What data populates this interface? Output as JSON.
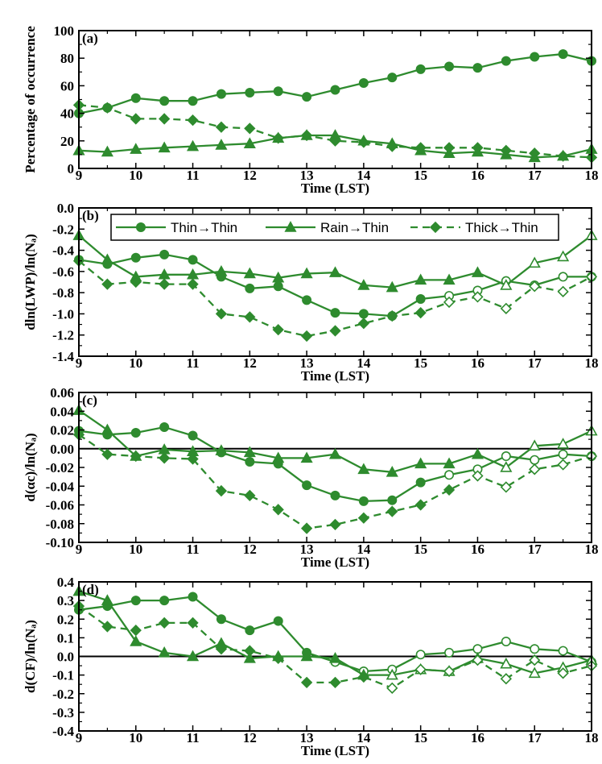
{
  "colors": {
    "series": "#2e8b2e",
    "axis": "#000000",
    "zero_line": "#000000"
  },
  "legend": {
    "placement": "top-center of panel (b)",
    "entries": [
      {
        "label": "Thin→Thin",
        "marker": "circle",
        "line": "solid"
      },
      {
        "label": "Rain→Thin",
        "marker": "triangle",
        "line": "solid"
      },
      {
        "label": "Thick→Thin",
        "marker": "diamond",
        "line": "dashed"
      }
    ]
  },
  "chart_data": [
    {
      "type": "line",
      "label": "(a)",
      "xlabel": "Time (LST)",
      "ylabel": "Percentage of occurrence",
      "xlim": [
        9,
        18
      ],
      "ylim": [
        0,
        100
      ],
      "xticks": [
        9,
        10,
        11,
        12,
        13,
        14,
        15,
        16,
        17,
        18
      ],
      "yticks": [
        0,
        20,
        40,
        60,
        80,
        100
      ],
      "ytick_labels": [
        "0",
        "20",
        "40",
        "60",
        "80",
        "100"
      ],
      "zero_line": false,
      "x": [
        9,
        9.5,
        10,
        10.5,
        11,
        11.5,
        12,
        12.5,
        13,
        13.5,
        14,
        14.5,
        15,
        15.5,
        16,
        16.5,
        17,
        17.5,
        18
      ],
      "series": [
        {
          "marker": "circle",
          "dashed": false,
          "open_from": null,
          "values": [
            40,
            44,
            51,
            49,
            49,
            54,
            55,
            56,
            52,
            57,
            62,
            66,
            72,
            74,
            73,
            78,
            81,
            83,
            78
          ]
        },
        {
          "marker": "triangle",
          "dashed": false,
          "open_from": null,
          "values": [
            13,
            12,
            14,
            15,
            16,
            17,
            18,
            22,
            24,
            24,
            20,
            18,
            13,
            11,
            12,
            10,
            8,
            9,
            14
          ]
        },
        {
          "marker": "diamond",
          "dashed": true,
          "open_from": null,
          "values": [
            46,
            44,
            36,
            36,
            35,
            30,
            29,
            22,
            24,
            20,
            19,
            16,
            15,
            15,
            15,
            13,
            11,
            9,
            8
          ]
        }
      ]
    },
    {
      "type": "line",
      "label": "(b)",
      "xlabel": "Time (LST)",
      "ylabel": "dln(LWP)/ln(Nₐ)",
      "xlim": [
        9,
        18
      ],
      "ylim": [
        -1.4,
        0
      ],
      "xticks": [
        9,
        10,
        11,
        12,
        13,
        14,
        15,
        16,
        17,
        18
      ],
      "yticks": [
        -1.4,
        -1.2,
        -1.0,
        -0.8,
        -0.6,
        -0.4,
        -0.2,
        0.0
      ],
      "ytick_labels": [
        "-1.4",
        "-1.2",
        "-1.0",
        "-0.8",
        "-0.6",
        "-0.4",
        "-0.2",
        "0.0"
      ],
      "zero_line": false,
      "x": [
        9,
        9.5,
        10,
        10.5,
        11,
        11.5,
        12,
        12.5,
        13,
        13.5,
        14,
        14.5,
        15,
        15.5,
        16,
        16.5,
        17,
        17.5,
        18
      ],
      "series": [
        {
          "marker": "circle",
          "dashed": false,
          "open_from": 15.5,
          "values": [
            -0.49,
            -0.53,
            -0.47,
            -0.44,
            -0.49,
            -0.65,
            -0.76,
            -0.74,
            -0.87,
            -0.99,
            -1.0,
            -1.02,
            -0.86,
            -0.83,
            -0.78,
            -0.69,
            -0.73,
            -0.65,
            -0.65
          ]
        },
        {
          "marker": "triangle",
          "dashed": false,
          "open_from": 16.5,
          "values": [
            -0.26,
            -0.49,
            -0.65,
            -0.63,
            -0.63,
            -0.6,
            -0.62,
            -0.66,
            -0.62,
            -0.61,
            -0.73,
            -0.75,
            -0.68,
            -0.68,
            -0.61,
            -0.73,
            -0.52,
            -0.46,
            -0.26
          ]
        },
        {
          "marker": "diamond",
          "dashed": true,
          "open_from": 15.5,
          "values": [
            -0.5,
            -0.72,
            -0.7,
            -0.72,
            -0.72,
            -1.0,
            -1.03,
            -1.15,
            -1.21,
            -1.16,
            -1.09,
            -1.02,
            -0.99,
            -0.89,
            -0.84,
            -0.95,
            -0.74,
            -0.79,
            -0.65
          ]
        }
      ]
    },
    {
      "type": "line",
      "label": "(c)",
      "xlabel": "Time (LST)",
      "ylabel": "d(αc)/ln(Nₐ)",
      "xlim": [
        9,
        18
      ],
      "ylim": [
        -0.1,
        0.06
      ],
      "xticks": [
        9,
        10,
        11,
        12,
        13,
        14,
        15,
        16,
        17,
        18
      ],
      "yticks": [
        -0.1,
        -0.08,
        -0.06,
        -0.04,
        -0.02,
        0.0,
        0.02,
        0.04,
        0.06
      ],
      "ytick_labels": [
        "-0.10",
        "-0.08",
        "-0.06",
        "-0.04",
        "-0.02",
        "0.00",
        "0.02",
        "0.04",
        "0.06"
      ],
      "zero_line": true,
      "x": [
        9,
        9.5,
        10,
        10.5,
        11,
        11.5,
        12,
        12.5,
        13,
        13.5,
        14,
        14.5,
        15,
        15.5,
        16,
        16.5,
        17,
        17.5,
        18
      ],
      "series": [
        {
          "marker": "circle",
          "dashed": false,
          "open_from": 15.5,
          "values": [
            0.019,
            0.015,
            0.017,
            0.023,
            0.014,
            -0.004,
            -0.014,
            -0.016,
            -0.039,
            -0.05,
            -0.056,
            -0.055,
            -0.036,
            -0.028,
            -0.022,
            -0.008,
            -0.012,
            -0.006,
            -0.008
          ]
        },
        {
          "marker": "triangle",
          "dashed": false,
          "open_from": 16.5,
          "values": [
            0.041,
            0.02,
            -0.008,
            -0.001,
            -0.003,
            -0.002,
            -0.004,
            -0.01,
            -0.01,
            -0.006,
            -0.022,
            -0.025,
            -0.016,
            -0.016,
            -0.006,
            -0.02,
            0.003,
            0.005,
            0.019
          ]
        },
        {
          "marker": "diamond",
          "dashed": true,
          "open_from": 16,
          "values": [
            0.015,
            -0.006,
            -0.008,
            -0.01,
            -0.011,
            -0.045,
            -0.05,
            -0.065,
            -0.085,
            -0.081,
            -0.074,
            -0.067,
            -0.06,
            -0.044,
            -0.029,
            -0.041,
            -0.022,
            -0.017,
            -0.008
          ]
        }
      ]
    },
    {
      "type": "line",
      "label": "(d)",
      "xlabel": "Time (LST)",
      "ylabel": "d(CF)/ln(Nₐ)",
      "xlim": [
        9,
        18
      ],
      "ylim": [
        -0.4,
        0.4
      ],
      "xticks": [
        9,
        10,
        11,
        12,
        13,
        14,
        15,
        16,
        17,
        18
      ],
      "yticks": [
        -0.4,
        -0.3,
        -0.2,
        -0.1,
        0.0,
        0.1,
        0.2,
        0.3,
        0.4
      ],
      "ytick_labels": [
        "-0.4",
        "-0.3",
        "-0.2",
        "-0.1",
        "0.0",
        "0.1",
        "0.2",
        "0.3",
        "0.4"
      ],
      "zero_line": true,
      "x": [
        9,
        9.5,
        10,
        10.5,
        11,
        11.5,
        12,
        12.5,
        13,
        13.5,
        14,
        14.5,
        15,
        15.5,
        16,
        16.5,
        17,
        17.5,
        18
      ],
      "series": [
        {
          "marker": "circle",
          "dashed": false,
          "open_from": 13.5,
          "values": [
            0.25,
            0.27,
            0.3,
            0.3,
            0.32,
            0.2,
            0.14,
            0.19,
            0.02,
            -0.03,
            -0.08,
            -0.07,
            0.01,
            0.02,
            0.04,
            0.08,
            0.04,
            0.03,
            -0.03
          ]
        },
        {
          "marker": "triangle",
          "dashed": false,
          "open_from": 14.5,
          "values": [
            0.35,
            0.3,
            0.08,
            0.02,
            0.0,
            0.07,
            -0.01,
            0.0,
            0.0,
            -0.01,
            -0.1,
            -0.1,
            -0.07,
            -0.08,
            -0.01,
            -0.04,
            -0.09,
            -0.06,
            -0.02
          ]
        },
        {
          "marker": "diamond",
          "dashed": true,
          "open_from": 14.5,
          "values": [
            0.27,
            0.16,
            0.14,
            0.18,
            0.18,
            0.04,
            0.03,
            -0.01,
            -0.14,
            -0.14,
            -0.11,
            -0.17,
            -0.07,
            -0.08,
            -0.02,
            -0.12,
            -0.02,
            -0.09,
            -0.05
          ]
        }
      ]
    }
  ]
}
